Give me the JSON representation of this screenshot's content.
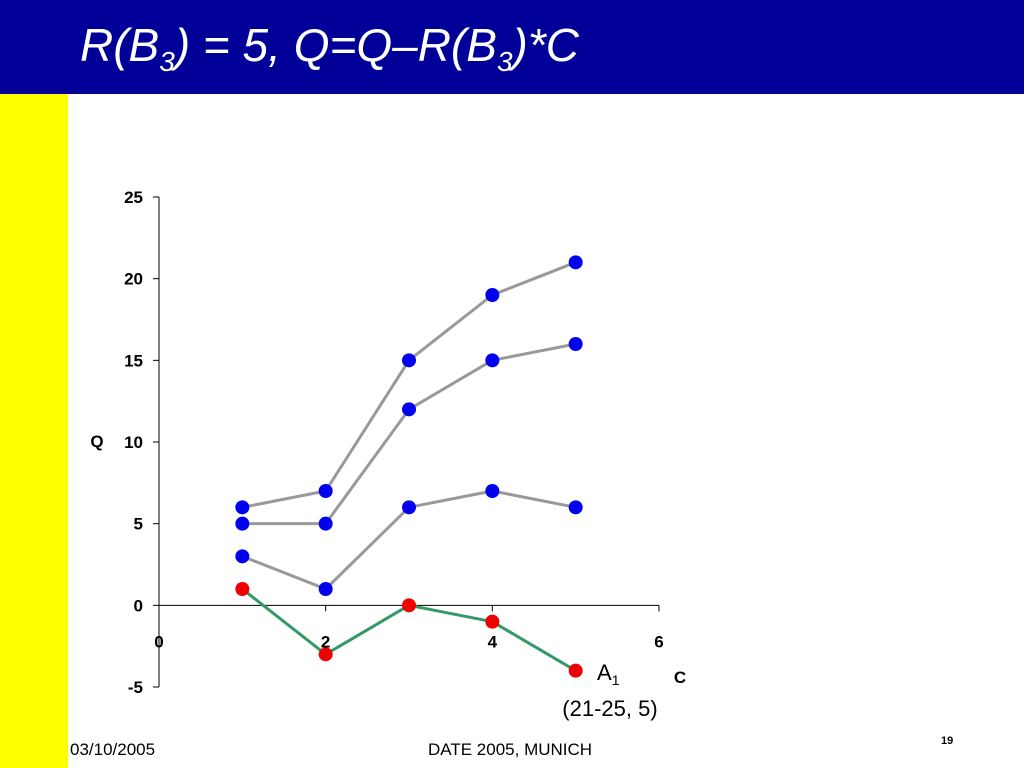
{
  "slide": {
    "title_prefix": "R(B",
    "title_sub1": "3",
    "title_middle": ") = 5, Q=Q–R(B",
    "title_sub2": "3",
    "title_suffix": ")*C",
    "footer_date": "03/10/2005",
    "footer_event": "DATE 2005, MUNICH",
    "slide_number": "19"
  },
  "colors": {
    "title_bar": "#000099",
    "left_band": "#ffff00",
    "blue_marker": "#0000ee",
    "red_marker": "#ee0000",
    "gray_line": "#999999",
    "green_line": "#339966"
  },
  "chart_data": {
    "type": "scatter",
    "xlabel": "C",
    "ylabel": "Q",
    "xlim": [
      0,
      6
    ],
    "ylim": [
      -5,
      25
    ],
    "xticks": [
      "0",
      "2",
      "4",
      "6"
    ],
    "yticks": [
      "-5",
      "0",
      "5",
      "10",
      "15",
      "20",
      "25"
    ],
    "grid": false,
    "series": [
      {
        "x": [
          1,
          2,
          3,
          4,
          5
        ],
        "y": [
          6,
          7,
          15,
          19,
          21
        ],
        "line_color": "#999999",
        "marker_color": "#0000ee"
      },
      {
        "x": [
          1,
          2,
          3,
          4,
          5
        ],
        "y": [
          5,
          5,
          12,
          15,
          16
        ],
        "line_color": "#999999",
        "marker_color": "#0000ee"
      },
      {
        "x": [
          1,
          2,
          3,
          4,
          5
        ],
        "y": [
          3,
          1,
          6,
          7,
          6
        ],
        "line_color": "#999999",
        "marker_color": "#0000ee"
      },
      {
        "x": [
          1,
          2,
          3,
          4,
          5
        ],
        "y": [
          1,
          -3,
          0,
          -1,
          -4
        ],
        "line_color": "#339966",
        "marker_color": "#ee0000"
      }
    ],
    "annotation": {
      "label_main": "A",
      "label_sub": "1",
      "label_range": "(21-25, 5)"
    }
  }
}
